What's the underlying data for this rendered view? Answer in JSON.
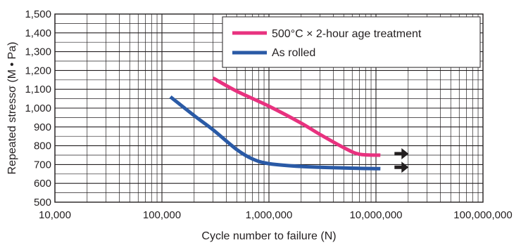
{
  "chart_data": {
    "type": "line",
    "xlabel": "Cycle number to failure (N)",
    "ylabel": "Repeated stressσ (M • Pa)",
    "x_scale": "log",
    "xlim": [
      10000,
      100000000
    ],
    "ylim": [
      500,
      1500
    ],
    "x_ticks": [
      "10,000",
      "100,000",
      "1,000,000",
      "10,000,000",
      "100,000,000"
    ],
    "y_ticks": [
      "1,500",
      "1,400",
      "1,300",
      "1,200",
      "1,100",
      "1,000",
      "900",
      "800",
      "700",
      "600",
      "500"
    ],
    "grid": true,
    "legend_position": "top-right",
    "series": [
      {
        "name": "500°C × 2-hour age treatment",
        "color": "#e8327f",
        "points": [
          [
            300000,
            1160
          ],
          [
            500000,
            1090
          ],
          [
            1000000,
            1010
          ],
          [
            2000000,
            920
          ],
          [
            3000000,
            860
          ],
          [
            5000000,
            790
          ],
          [
            7000000,
            755
          ],
          [
            11000000,
            750
          ]
        ],
        "continues_beyond_arrow": true
      },
      {
        "name": "As rolled",
        "color": "#2a5aa6",
        "points": [
          [
            120000,
            1060
          ],
          [
            200000,
            960
          ],
          [
            300000,
            885
          ],
          [
            500000,
            780
          ],
          [
            700000,
            730
          ],
          [
            1000000,
            705
          ],
          [
            2000000,
            690
          ],
          [
            5000000,
            682
          ],
          [
            11000000,
            678
          ]
        ],
        "continues_beyond_arrow": true
      }
    ]
  }
}
